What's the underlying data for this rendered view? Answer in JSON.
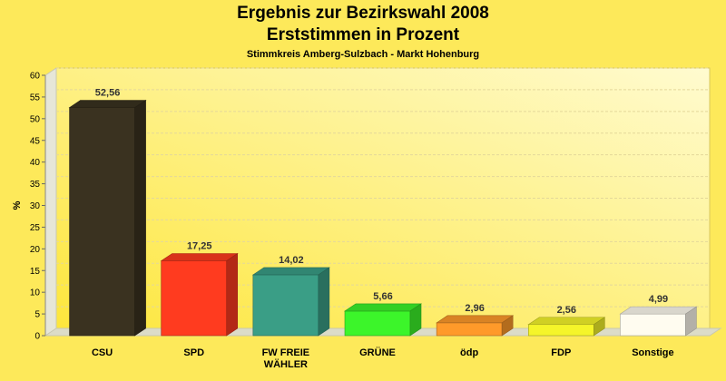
{
  "chart_data": {
    "type": "bar",
    "title": "Ergebnis zur Bezirkswahl 2008",
    "subtitle_line": "Erststimmen in Prozent",
    "subtitle": "Stimmkreis Amberg-Sulzbach - Markt Hohenburg",
    "ylabel": "%",
    "xlabel": "",
    "ylim": [
      0,
      60
    ],
    "yticks": [
      0,
      5,
      10,
      15,
      20,
      25,
      30,
      35,
      40,
      45,
      50,
      55,
      60
    ],
    "grid": true,
    "categories": [
      [
        "CSU"
      ],
      [
        "SPD"
      ],
      [
        "FW FREIE",
        "WÄHLER"
      ],
      [
        "GRÜNE"
      ],
      [
        "ödp"
      ],
      [
        "FDP"
      ],
      [
        "Sonstige"
      ]
    ],
    "values": [
      52.56,
      17.25,
      14.02,
      5.66,
      2.96,
      2.56,
      4.99
    ],
    "value_labels": [
      "52,56",
      "17,25",
      "14,02",
      "5,66",
      "2,96",
      "2,56",
      "4,99"
    ],
    "colors": [
      "#3a3220",
      "#ff3b1f",
      "#3a9e86",
      "#3cf52a",
      "#ff9a2a",
      "#f5f52a",
      "#fffcf0"
    ]
  }
}
